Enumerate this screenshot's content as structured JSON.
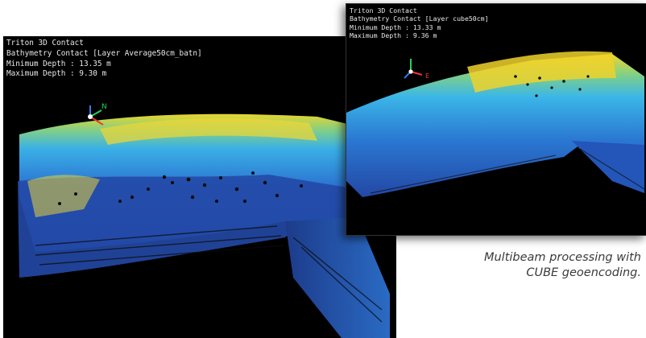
{
  "left_view": {
    "lines": [
      "Triton 3D Contact",
      "Bathymetry Contact [Layer Average50cm_batn]",
      "Minimum Depth : 13.35 m",
      "Maximum Depth : 9.30 m"
    ],
    "axis_label": "N"
  },
  "right_view": {
    "lines": [
      "Triton 3D Contact",
      "Bathymetry Contact [Layer cube50cm]",
      "Minimum Depth : 13.33 m",
      "Maximum Depth : 9.36 m"
    ],
    "axis_label": "E"
  },
  "caption": {
    "line1": "Multibeam processing with",
    "line2": "CUBE geoencoding."
  },
  "colors": {
    "background": "#000000",
    "deep": "#1f3c9a",
    "mid": "#2b7fd0",
    "shallow": "#39b3e6",
    "peak": "#f0d52a",
    "caption_text": "#3a3a3a"
  }
}
